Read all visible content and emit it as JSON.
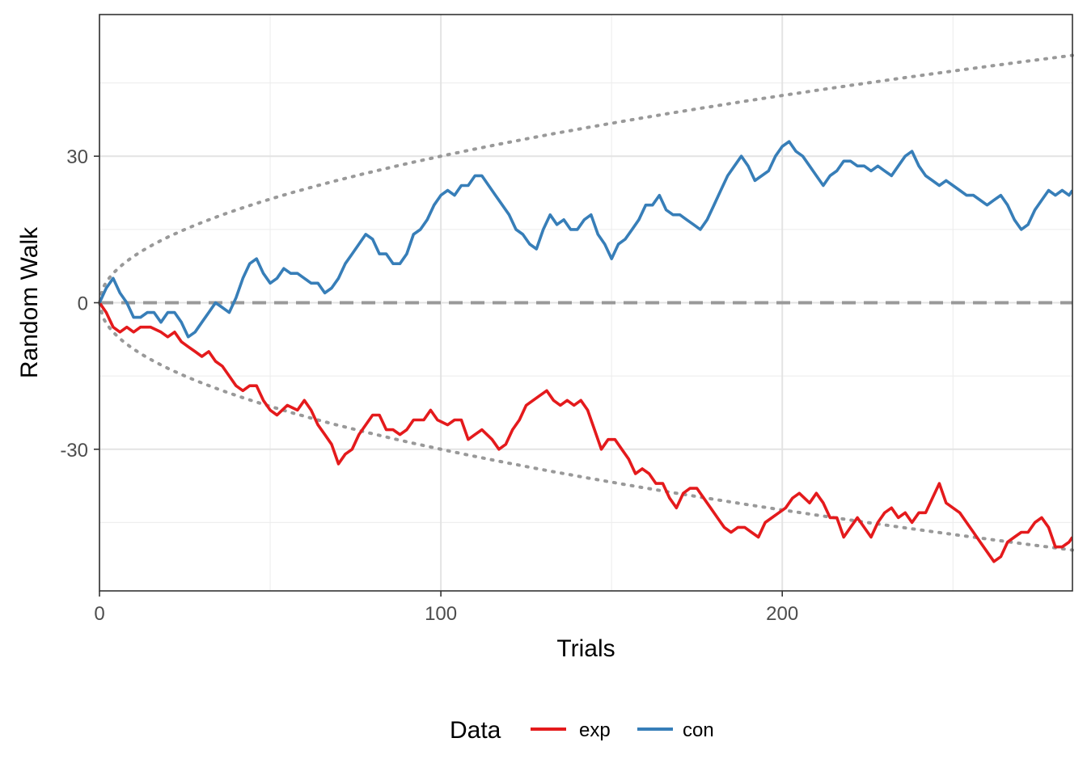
{
  "chart_data": {
    "type": "line",
    "xlabel": "Trials",
    "ylabel": "Random Walk",
    "xlim": [
      0,
      285
    ],
    "ylim": [
      -59,
      59
    ],
    "x_ticks": [
      0,
      100,
      200
    ],
    "x_tick_labels": [
      "0",
      "100",
      "200"
    ],
    "y_ticks": [
      -30,
      0,
      30
    ],
    "y_tick_labels": [
      "-30",
      "0",
      "30"
    ],
    "grid": true,
    "legend": {
      "title": "Data",
      "position": "bottom"
    },
    "reference_lines": [
      {
        "kind": "horizontal-dashed",
        "y": 0,
        "color": "#999999"
      },
      {
        "kind": "upper-bound-dotted",
        "formula": "3*sqrt(x)",
        "color": "#999999"
      },
      {
        "kind": "lower-bound-dotted",
        "formula": "-3*sqrt(x)",
        "color": "#999999"
      }
    ],
    "series": [
      {
        "name": "exp",
        "color": "#E41A1C",
        "points": [
          [
            0,
            0
          ],
          [
            2,
            -2
          ],
          [
            4,
            -5
          ],
          [
            6,
            -6
          ],
          [
            8,
            -5
          ],
          [
            10,
            -6
          ],
          [
            12,
            -5
          ],
          [
            15,
            -5
          ],
          [
            18,
            -6
          ],
          [
            20,
            -7
          ],
          [
            22,
            -6
          ],
          [
            24,
            -8
          ],
          [
            26,
            -9
          ],
          [
            28,
            -10
          ],
          [
            30,
            -11
          ],
          [
            32,
            -10
          ],
          [
            34,
            -12
          ],
          [
            36,
            -13
          ],
          [
            38,
            -15
          ],
          [
            40,
            -17
          ],
          [
            42,
            -18
          ],
          [
            44,
            -17
          ],
          [
            46,
            -17
          ],
          [
            48,
            -20
          ],
          [
            50,
            -22
          ],
          [
            52,
            -23
          ],
          [
            55,
            -21
          ],
          [
            58,
            -22
          ],
          [
            60,
            -20
          ],
          [
            62,
            -22
          ],
          [
            64,
            -25
          ],
          [
            66,
            -27
          ],
          [
            68,
            -29
          ],
          [
            70,
            -33
          ],
          [
            72,
            -31
          ],
          [
            74,
            -30
          ],
          [
            76,
            -27
          ],
          [
            78,
            -25
          ],
          [
            80,
            -23
          ],
          [
            82,
            -23
          ],
          [
            84,
            -26
          ],
          [
            86,
            -26
          ],
          [
            88,
            -27
          ],
          [
            90,
            -26
          ],
          [
            92,
            -24
          ],
          [
            95,
            -24
          ],
          [
            97,
            -22
          ],
          [
            99,
            -24
          ],
          [
            102,
            -25
          ],
          [
            104,
            -24
          ],
          [
            106,
            -24
          ],
          [
            108,
            -28
          ],
          [
            110,
            -27
          ],
          [
            112,
            -26
          ],
          [
            115,
            -28
          ],
          [
            117,
            -30
          ],
          [
            119,
            -29
          ],
          [
            121,
            -26
          ],
          [
            123,
            -24
          ],
          [
            125,
            -21
          ],
          [
            127,
            -20
          ],
          [
            129,
            -19
          ],
          [
            131,
            -18
          ],
          [
            133,
            -20
          ],
          [
            135,
            -21
          ],
          [
            137,
            -20
          ],
          [
            139,
            -21
          ],
          [
            141,
            -20
          ],
          [
            143,
            -22
          ],
          [
            145,
            -26
          ],
          [
            147,
            -30
          ],
          [
            149,
            -28
          ],
          [
            151,
            -28
          ],
          [
            153,
            -30
          ],
          [
            155,
            -32
          ],
          [
            157,
            -35
          ],
          [
            159,
            -34
          ],
          [
            161,
            -35
          ],
          [
            163,
            -37
          ],
          [
            165,
            -37
          ],
          [
            167,
            -40
          ],
          [
            169,
            -42
          ],
          [
            171,
            -39
          ],
          [
            173,
            -38
          ],
          [
            175,
            -38
          ],
          [
            177,
            -40
          ],
          [
            179,
            -42
          ],
          [
            181,
            -44
          ],
          [
            183,
            -46
          ],
          [
            185,
            -47
          ],
          [
            187,
            -46
          ],
          [
            189,
            -46
          ],
          [
            191,
            -47
          ],
          [
            193,
            -48
          ],
          [
            195,
            -45
          ],
          [
            197,
            -44
          ],
          [
            199,
            -43
          ],
          [
            201,
            -42
          ],
          [
            203,
            -40
          ],
          [
            205,
            -39
          ],
          [
            208,
            -41
          ],
          [
            210,
            -39
          ],
          [
            212,
            -41
          ],
          [
            214,
            -44
          ],
          [
            216,
            -44
          ],
          [
            218,
            -48
          ],
          [
            220,
            -46
          ],
          [
            222,
            -44
          ],
          [
            224,
            -46
          ],
          [
            226,
            -48
          ],
          [
            228,
            -45
          ],
          [
            230,
            -43
          ],
          [
            232,
            -42
          ],
          [
            234,
            -44
          ],
          [
            236,
            -43
          ],
          [
            238,
            -45
          ],
          [
            240,
            -43
          ],
          [
            242,
            -43
          ],
          [
            244,
            -40
          ],
          [
            246,
            -37
          ],
          [
            248,
            -41
          ],
          [
            250,
            -42
          ],
          [
            252,
            -43
          ],
          [
            254,
            -45
          ],
          [
            256,
            -47
          ],
          [
            258,
            -49
          ],
          [
            260,
            -51
          ],
          [
            262,
            -53
          ],
          [
            264,
            -52
          ],
          [
            266,
            -49
          ],
          [
            268,
            -48
          ],
          [
            270,
            -47
          ],
          [
            272,
            -47
          ],
          [
            274,
            -45
          ],
          [
            276,
            -44
          ],
          [
            278,
            -46
          ],
          [
            280,
            -50
          ],
          [
            282,
            -50
          ],
          [
            284,
            -49
          ],
          [
            285,
            -48
          ]
        ]
      },
      {
        "name": "con",
        "color": "#377EB8",
        "points": [
          [
            0,
            0
          ],
          [
            2,
            3
          ],
          [
            4,
            5
          ],
          [
            6,
            2
          ],
          [
            8,
            0
          ],
          [
            10,
            -3
          ],
          [
            12,
            -3
          ],
          [
            14,
            -2
          ],
          [
            16,
            -2
          ],
          [
            18,
            -4
          ],
          [
            20,
            -2
          ],
          [
            22,
            -2
          ],
          [
            24,
            -4
          ],
          [
            26,
            -7
          ],
          [
            28,
            -6
          ],
          [
            30,
            -4
          ],
          [
            32,
            -2
          ],
          [
            34,
            0
          ],
          [
            36,
            -1
          ],
          [
            38,
            -2
          ],
          [
            40,
            1
          ],
          [
            42,
            5
          ],
          [
            44,
            8
          ],
          [
            46,
            9
          ],
          [
            48,
            6
          ],
          [
            50,
            4
          ],
          [
            52,
            5
          ],
          [
            54,
            7
          ],
          [
            56,
            6
          ],
          [
            58,
            6
          ],
          [
            60,
            5
          ],
          [
            62,
            4
          ],
          [
            64,
            4
          ],
          [
            66,
            2
          ],
          [
            68,
            3
          ],
          [
            70,
            5
          ],
          [
            72,
            8
          ],
          [
            74,
            10
          ],
          [
            76,
            12
          ],
          [
            78,
            14
          ],
          [
            80,
            13
          ],
          [
            82,
            10
          ],
          [
            84,
            10
          ],
          [
            86,
            8
          ],
          [
            88,
            8
          ],
          [
            90,
            10
          ],
          [
            92,
            14
          ],
          [
            94,
            15
          ],
          [
            96,
            17
          ],
          [
            98,
            20
          ],
          [
            100,
            22
          ],
          [
            102,
            23
          ],
          [
            104,
            22
          ],
          [
            106,
            24
          ],
          [
            108,
            24
          ],
          [
            110,
            26
          ],
          [
            112,
            26
          ],
          [
            114,
            24
          ],
          [
            116,
            22
          ],
          [
            118,
            20
          ],
          [
            120,
            18
          ],
          [
            122,
            15
          ],
          [
            124,
            14
          ],
          [
            126,
            12
          ],
          [
            128,
            11
          ],
          [
            130,
            15
          ],
          [
            132,
            18
          ],
          [
            134,
            16
          ],
          [
            136,
            17
          ],
          [
            138,
            15
          ],
          [
            140,
            15
          ],
          [
            142,
            17
          ],
          [
            144,
            18
          ],
          [
            146,
            14
          ],
          [
            148,
            12
          ],
          [
            150,
            9
          ],
          [
            152,
            12
          ],
          [
            154,
            13
          ],
          [
            156,
            15
          ],
          [
            158,
            17
          ],
          [
            160,
            20
          ],
          [
            162,
            20
          ],
          [
            164,
            22
          ],
          [
            166,
            19
          ],
          [
            168,
            18
          ],
          [
            170,
            18
          ],
          [
            172,
            17
          ],
          [
            174,
            16
          ],
          [
            176,
            15
          ],
          [
            178,
            17
          ],
          [
            180,
            20
          ],
          [
            182,
            23
          ],
          [
            184,
            26
          ],
          [
            186,
            28
          ],
          [
            188,
            30
          ],
          [
            190,
            28
          ],
          [
            192,
            25
          ],
          [
            194,
            26
          ],
          [
            196,
            27
          ],
          [
            198,
            30
          ],
          [
            200,
            32
          ],
          [
            202,
            33
          ],
          [
            204,
            31
          ],
          [
            206,
            30
          ],
          [
            208,
            28
          ],
          [
            210,
            26
          ],
          [
            212,
            24
          ],
          [
            214,
            26
          ],
          [
            216,
            27
          ],
          [
            218,
            29
          ],
          [
            220,
            29
          ],
          [
            222,
            28
          ],
          [
            224,
            28
          ],
          [
            226,
            27
          ],
          [
            228,
            28
          ],
          [
            230,
            27
          ],
          [
            232,
            26
          ],
          [
            234,
            28
          ],
          [
            236,
            30
          ],
          [
            238,
            31
          ],
          [
            240,
            28
          ],
          [
            242,
            26
          ],
          [
            244,
            25
          ],
          [
            246,
            24
          ],
          [
            248,
            25
          ],
          [
            250,
            24
          ],
          [
            252,
            23
          ],
          [
            254,
            22
          ],
          [
            256,
            22
          ],
          [
            258,
            21
          ],
          [
            260,
            20
          ],
          [
            262,
            21
          ],
          [
            264,
            22
          ],
          [
            266,
            20
          ],
          [
            268,
            17
          ],
          [
            270,
            15
          ],
          [
            272,
            16
          ],
          [
            274,
            19
          ],
          [
            276,
            21
          ],
          [
            278,
            23
          ],
          [
            280,
            22
          ],
          [
            282,
            23
          ],
          [
            284,
            22
          ],
          [
            285,
            23
          ]
        ]
      }
    ]
  }
}
